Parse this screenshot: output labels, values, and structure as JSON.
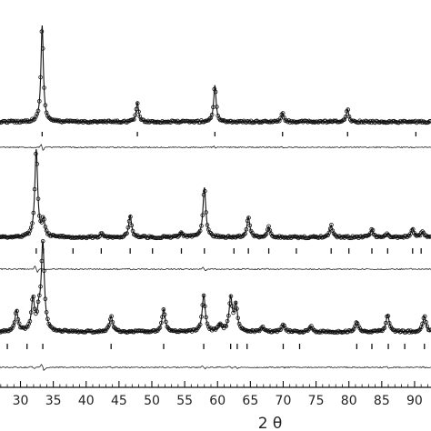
{
  "chart_data": {
    "type": "line",
    "title": "",
    "xlabel": "2 θ",
    "ylabel": "",
    "xlim": [
      25.5,
      92.5
    ],
    "x_ticks": [
      30,
      35,
      40,
      45,
      50,
      55,
      60,
      65,
      70,
      75,
      80,
      85,
      90
    ],
    "x_tick_labels": [
      "30",
      "35",
      "40",
      "45",
      "50",
      "55",
      "60",
      "65",
      "70",
      "75",
      "80",
      "85",
      "90"
    ],
    "grid": false,
    "legend": "none",
    "series": [
      {
        "baseline": 0.0,
        "peaks": [
          [
            33.3,
            1.0
          ],
          [
            47.8,
            0.2
          ],
          [
            59.6,
            0.38
          ],
          [
            69.9,
            0.09
          ],
          [
            79.8,
            0.13
          ]
        ],
        "bragg_markers": [
          33.3,
          47.8,
          59.6,
          69.9,
          79.8,
          90.2
        ],
        "fit_style": "observed circles + calculated line"
      },
      {
        "baseline": 0.0,
        "peaks": [
          [
            32.4,
            1.0
          ],
          [
            33.5,
            0.18
          ],
          [
            42.3,
            0.04
          ],
          [
            46.7,
            0.25
          ],
          [
            54.5,
            0.06
          ],
          [
            58.0,
            0.57
          ],
          [
            64.7,
            0.23
          ],
          [
            67.8,
            0.12
          ],
          [
            77.3,
            0.14
          ],
          [
            83.5,
            0.09
          ],
          [
            85.9,
            0.04
          ],
          [
            89.7,
            0.1
          ],
          [
            91.2,
            0.06
          ]
        ],
        "bragg_markers": [
          32.4,
          33.5,
          38.0,
          42.3,
          46.7,
          50.1,
          54.5,
          58.0,
          62.5,
          64.7,
          67.8,
          72.0,
          77.3,
          80.0,
          83.5,
          85.9,
          89.7,
          91.0
        ],
        "fit_style": "observed circles + calculated line"
      },
      {
        "baseline": 0.0,
        "peaks": [
          [
            29.4,
            0.24
          ],
          [
            31.9,
            0.36
          ],
          [
            32.8,
            0.18
          ],
          [
            33.4,
            1.0
          ],
          [
            43.8,
            0.18
          ],
          [
            51.8,
            0.26
          ],
          [
            57.9,
            0.42
          ],
          [
            60.4,
            0.08
          ],
          [
            62.0,
            0.38
          ],
          [
            62.8,
            0.3
          ],
          [
            66.8,
            0.05
          ],
          [
            70.0,
            0.08
          ],
          [
            74.2,
            0.06
          ],
          [
            81.2,
            0.12
          ],
          [
            85.9,
            0.2
          ],
          [
            91.5,
            0.18
          ]
        ],
        "bragg_markers": [
          28.0,
          31.0,
          33.4,
          43.8,
          51.8,
          57.9,
          62.0,
          63.0,
          64.5,
          70.0,
          72.5,
          81.2,
          83.5,
          86.0,
          88.5,
          91.5
        ],
        "fit_style": "observed circles + calculated line"
      }
    ]
  }
}
